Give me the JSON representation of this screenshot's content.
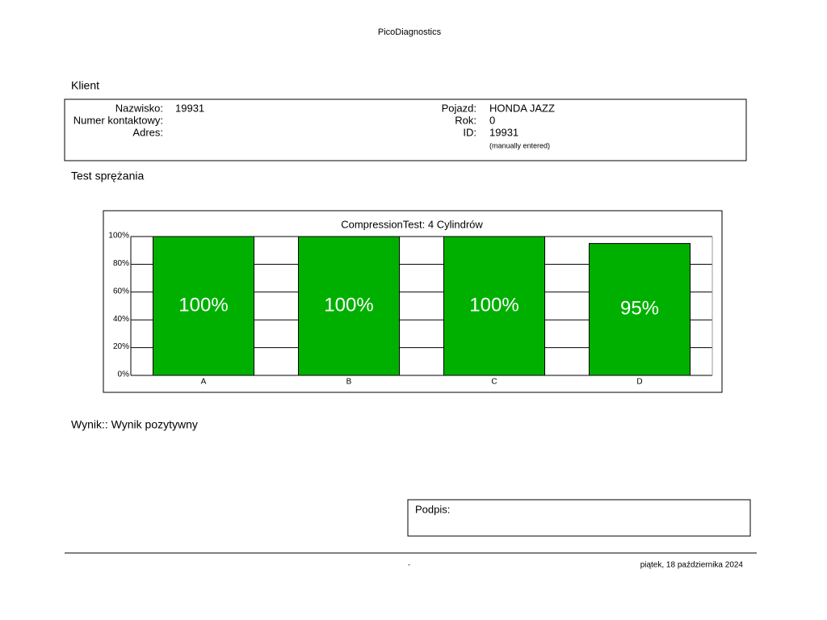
{
  "header": {
    "title": "PicoDiagnostics"
  },
  "client": {
    "heading": "Klient",
    "left": [
      {
        "label": "Nazwisko:",
        "value": "19931"
      },
      {
        "label": "Numer kontaktowy:"
      },
      {
        "label": "Adres:"
      }
    ],
    "right": [
      {
        "label": "Pojazd:",
        "value": "HONDA JAZZ"
      },
      {
        "label": "Rok:",
        "value": "0"
      },
      {
        "label": "ID:",
        "value": "19931"
      }
    ],
    "id_note": "(manually entered)"
  },
  "test_heading": "Test sprężania",
  "chart_data": {
    "type": "bar",
    "title": "CompressionTest: 4 Cylindrów",
    "categories": [
      "A",
      "B",
      "C",
      "D"
    ],
    "values": [
      100,
      100,
      100,
      95
    ],
    "value_labels": [
      "100%",
      "100%",
      "100%",
      "95%"
    ],
    "color": "#00b000",
    "ylim": [
      0,
      100
    ],
    "yticks": [
      {
        "value": 0,
        "label": "0%"
      },
      {
        "value": 20,
        "label": "20%"
      },
      {
        "value": 40,
        "label": "40%"
      },
      {
        "value": 60,
        "label": "60%"
      },
      {
        "value": 80,
        "label": "80%"
      },
      {
        "value": 100,
        "label": "100%"
      }
    ],
    "grid": true
  },
  "result": "Wynik:: Wynik pozytywny",
  "signature": {
    "label": "Podpis:"
  },
  "footer": {
    "left": "-",
    "date": "piątek, 18 października 2024"
  }
}
